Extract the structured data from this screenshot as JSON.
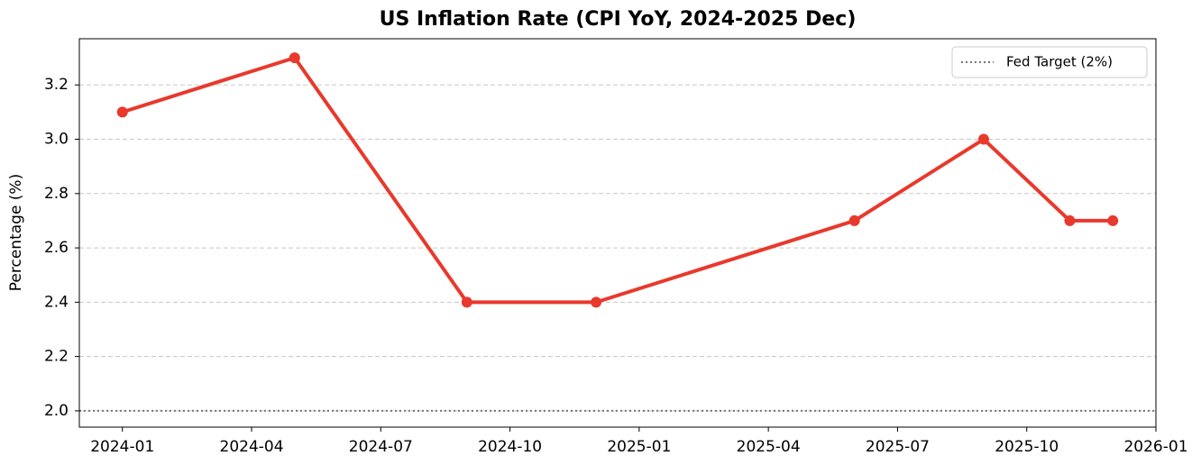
{
  "chart_data": {
    "type": "line",
    "title": "US Inflation Rate (CPI YoY, 2024-2025 Dec)",
    "ylabel": "Percentage (%)",
    "x": [
      "2024-01",
      "2024-05",
      "2024-09",
      "2024-12",
      "2025-06",
      "2025-09",
      "2025-11",
      "2025-12"
    ],
    "series": [
      {
        "color": "#e8392c",
        "values": [
          3.1,
          3.3,
          2.4,
          2.4,
          2.7,
          3.0,
          2.7,
          2.7
        ]
      }
    ],
    "xlim": [
      "2023-12",
      "2026-01"
    ],
    "xticks": [
      "2024-01",
      "2024-04",
      "2024-07",
      "2024-10",
      "2025-01",
      "2025-04",
      "2025-07",
      "2025-10",
      "2026-01"
    ],
    "ylim": [
      1.94,
      3.37
    ],
    "yticks": [
      {
        "value": 2,
        "label": "2.0"
      },
      2.2,
      2.4,
      2.6,
      2.8,
      {
        "value": 3,
        "label": "3.0"
      },
      3.2
    ],
    "grid": "y",
    "reference_line": {
      "name": "Fed Target (2%)",
      "value": 2,
      "color": "#777777"
    },
    "legend": "upper right"
  }
}
